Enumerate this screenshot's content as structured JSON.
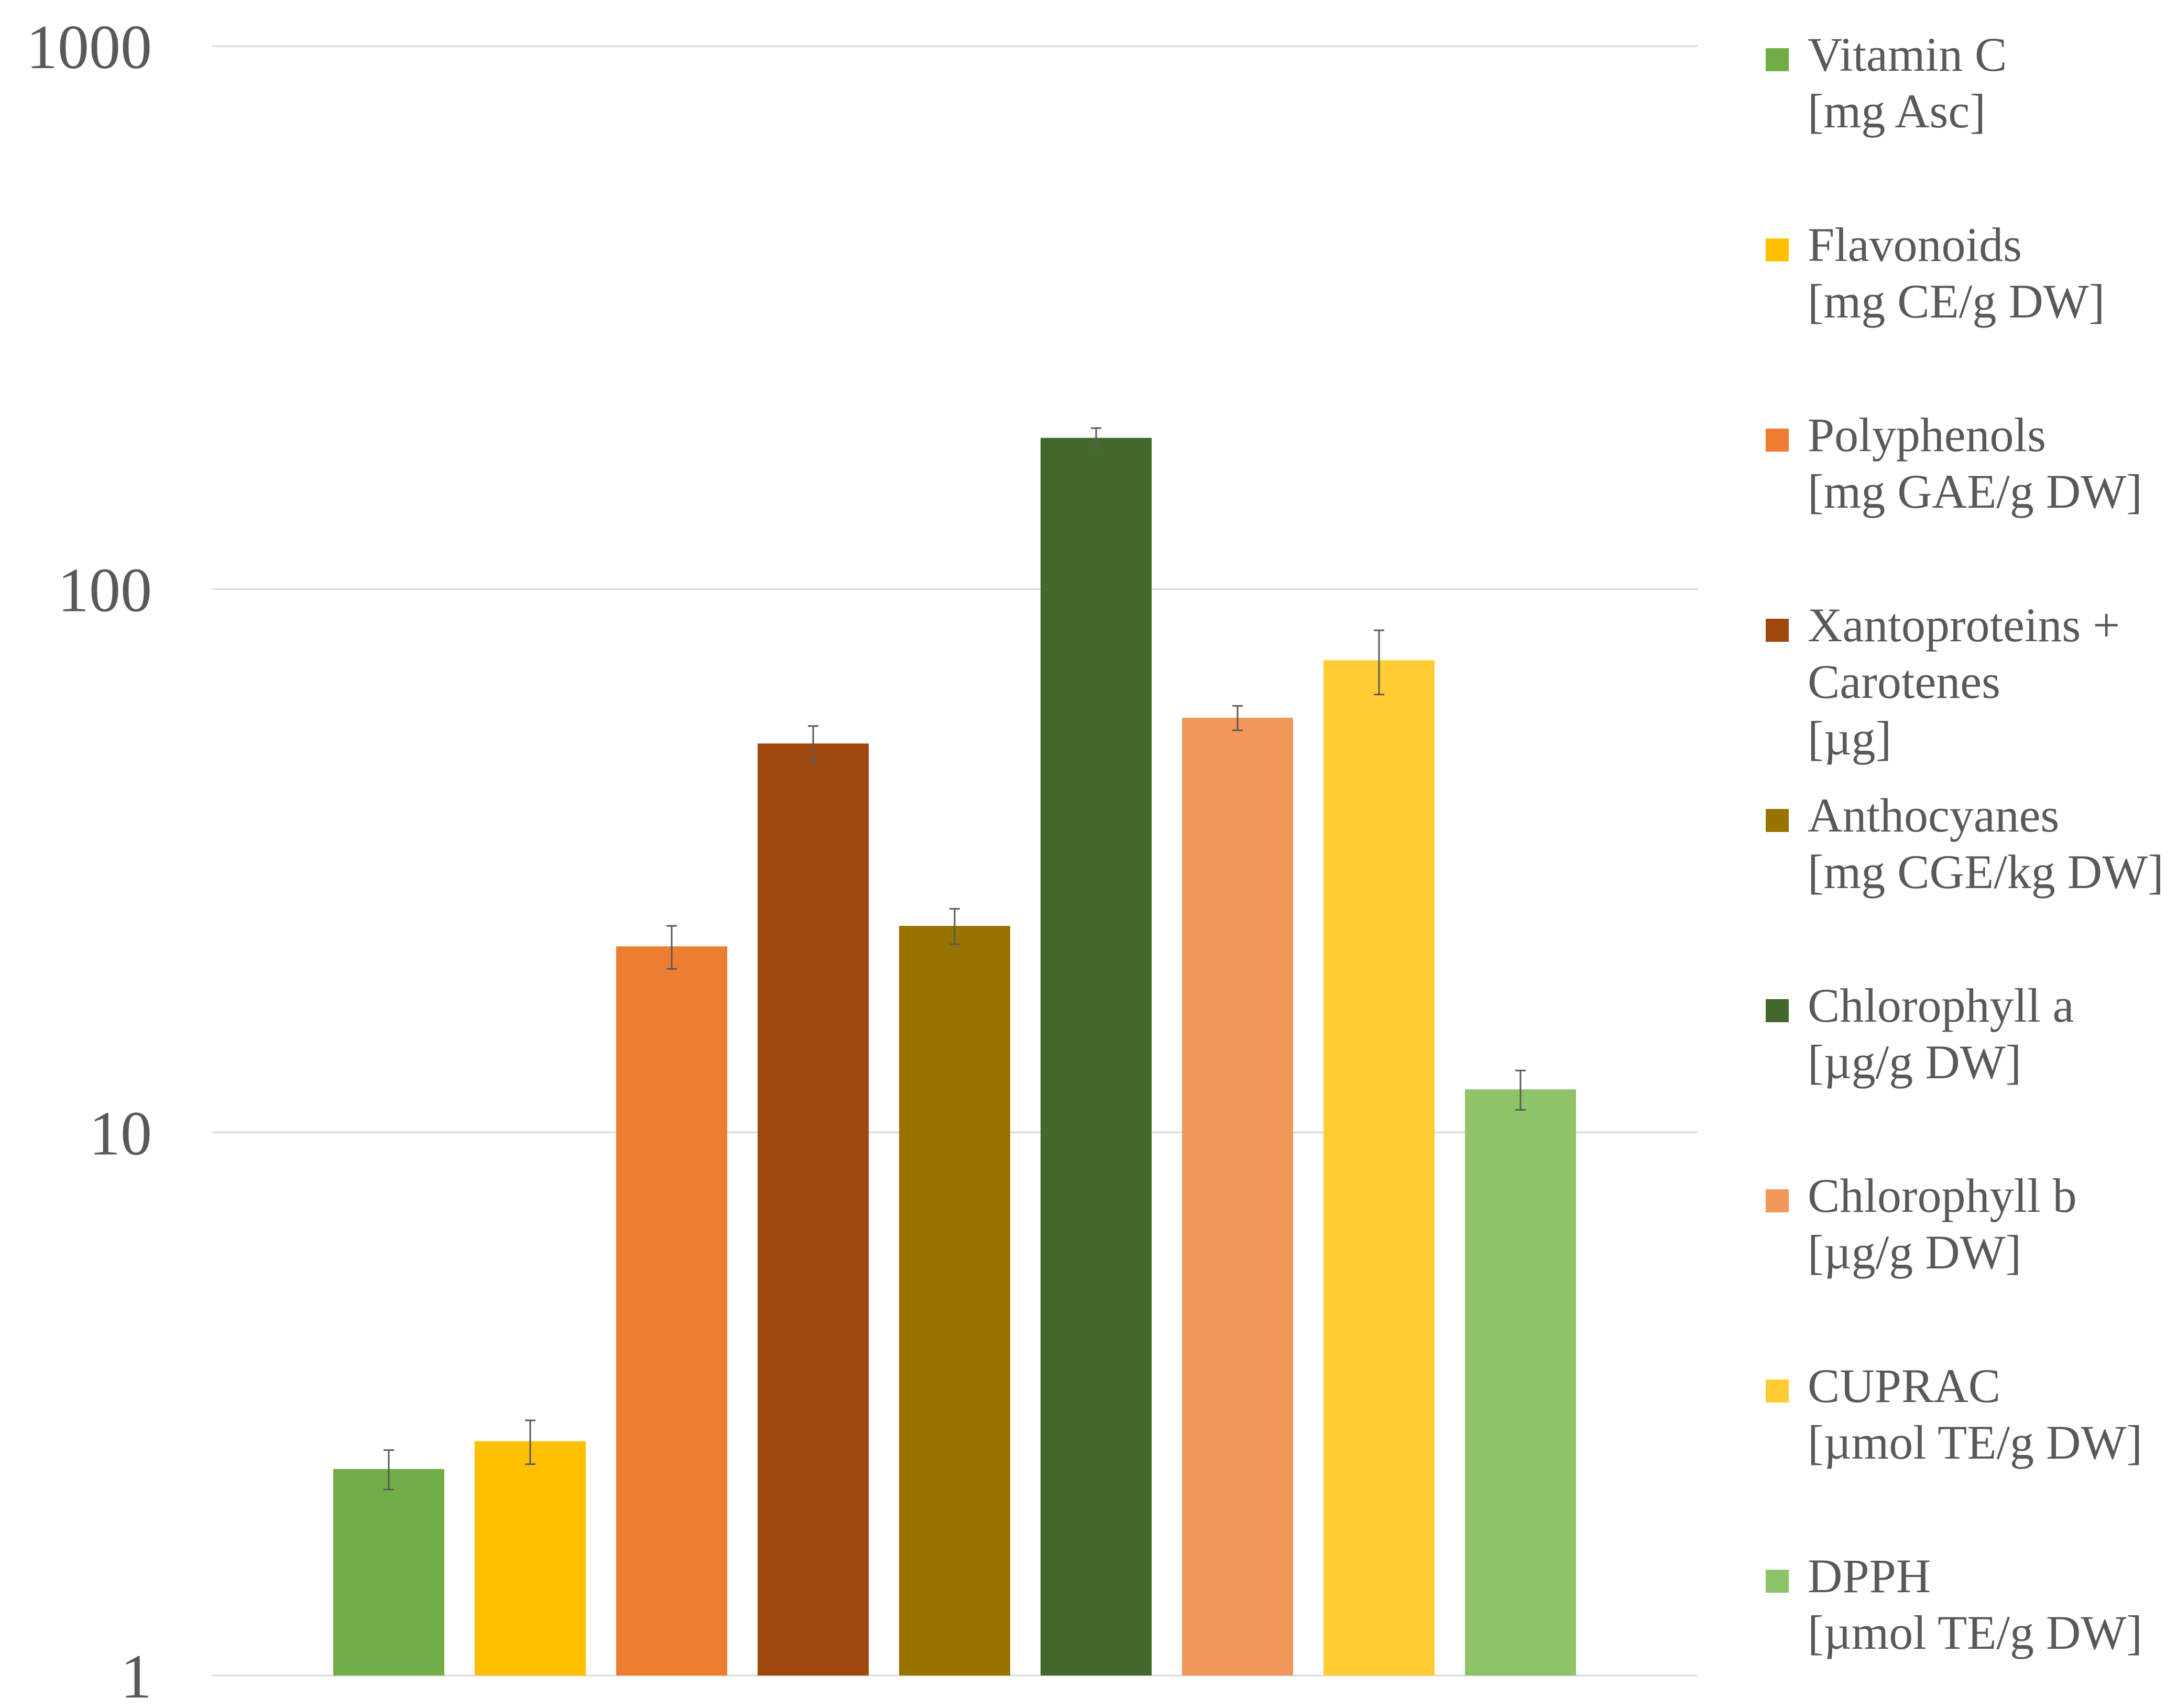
{
  "chart_data": {
    "type": "bar",
    "y_scale": "log",
    "ylim": [
      1,
      1000
    ],
    "grid": true,
    "legend_position": "right",
    "y_ticks": [
      "1",
      "10",
      "100",
      "1000"
    ],
    "categories": [
      "Vitamin C\n[mg Asc]",
      "Flavonoids\n[mg CE/g DW]",
      "Polyphenols\n[mg GAE/g DW]",
      "Xantoproteins +\nCarotenes\n[µg]",
      "Anthocyanes\n[mg CGE/kg DW]",
      "Chlorophyll a\n [µg/g DW]",
      "Chlorophyll b\n[µg/g DW]",
      "CUPRAC\n[µmol TE/g DW]",
      "DPPH\n[µmol TE/g DW]"
    ],
    "values": [
      2.4,
      2.7,
      22,
      52,
      24,
      190,
      58,
      74,
      12
    ],
    "errors": [
      0.2,
      0.25,
      2,
      4,
      1.8,
      8,
      3,
      10,
      1
    ],
    "colors": [
      "#70AD47",
      "#FFC000",
      "#ED7D31",
      "#9E480E",
      "#997300",
      "#43682B",
      "#F1975A",
      "#FFCD33",
      "#8FC36A"
    ]
  }
}
